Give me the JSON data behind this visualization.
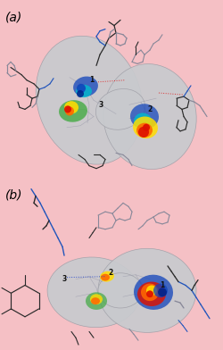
{
  "figure_width": 2.5,
  "figure_height": 3.92,
  "dpi": 100,
  "bg": "#f5c0c5",
  "surface_color": "#c8cace",
  "surface_edge": "#a0a0a8",
  "label_a": "(a)",
  "label_b": "(b)",
  "label_fontsize": 10,
  "num_labels": [
    "1",
    "2",
    "3"
  ],
  "num_fontsize": 5.5,
  "red_dot": "#dd2222",
  "blue_dot": "#2244cc",
  "panel_split": 0.49,
  "sticks_dark": "#2a2a2a",
  "sticks_blue": "#2255bb",
  "sticks_teal": "#226688",
  "sticks_gray": "#888899",
  "spot_red": "#dd1100",
  "spot_orange": "#ff6600",
  "spot_yellow": "#ffdd00",
  "spot_green": "#44aa44",
  "spot_cyan": "#00bbcc",
  "spot_blue": "#1144bb",
  "spot_darkblue": "#002288"
}
